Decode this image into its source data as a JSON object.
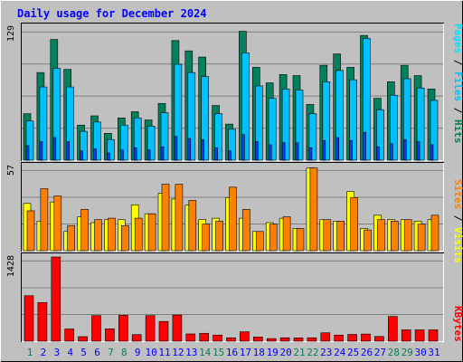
{
  "title": "Daily usage for December 2024",
  "colors": {
    "hits": "#00805c",
    "files": "#00c0ff",
    "pages": "#00e0ff",
    "visits": "#ffff00",
    "sites": "#ff8000",
    "kbytes": "#ff0000",
    "weekend_label": "#00805c",
    "weekday_label": "#0000ff",
    "title": "#0000ff"
  },
  "right_labels": {
    "top": [
      {
        "text": "Pages",
        "color": "#00e0ff"
      },
      {
        "text": " / ",
        "color": "#000000"
      },
      {
        "text": "Files",
        "color": "#00c0ff"
      },
      {
        "text": " / ",
        "color": "#000000"
      },
      {
        "text": "Hits",
        "color": "#00805c"
      }
    ],
    "middle": [
      {
        "text": "Sites",
        "color": "#ff8000"
      },
      {
        "text": " / ",
        "color": "#000000"
      },
      {
        "text": "Visits",
        "color": "#ffff00"
      }
    ],
    "bottom": [
      {
        "text": "KBytes",
        "color": "#ff0000"
      }
    ]
  },
  "chart_data": {
    "type": "bar",
    "title": "Daily usage for December 2024",
    "days": [
      "1",
      "2",
      "3",
      "4",
      "5",
      "6",
      "7",
      "8",
      "9",
      "10",
      "11",
      "12",
      "13",
      "14",
      "15",
      "16",
      "17",
      "18",
      "19",
      "20",
      "21",
      "22",
      "23",
      "24",
      "25",
      "26",
      "27",
      "28",
      "29",
      "30",
      "31"
    ],
    "weekend_days": [
      "1",
      "7",
      "8",
      "14",
      "15",
      "21",
      "22",
      "28",
      "29"
    ],
    "panels": [
      {
        "name": "hits-files-pages",
        "max_label": "129",
        "ymax": 129,
        "series": [
          {
            "name": "Hits",
            "values": [
              45,
              85,
              117,
              88,
              34,
              43,
              26,
              41,
              47,
              39,
              55,
              116,
              106,
              100,
              53,
              35,
              125,
              90,
              75,
              83,
              82,
              54,
              92,
              103,
              90,
              121,
              60,
              76,
              92,
              82,
              69
            ]
          },
          {
            "name": "Files",
            "values": [
              38,
              71,
              89,
              71,
              28,
              37,
              20,
              34,
              41,
              33,
              46,
              93,
              85,
              81,
              45,
              30,
              104,
              72,
              60,
              69,
              68,
              45,
              76,
              87,
              78,
              118,
              49,
              63,
              79,
              70,
              58
            ]
          },
          {
            "name": "Pages",
            "values": [
              14,
              18,
              22,
              18,
              9,
              11,
              7,
              10,
              12,
              10,
              13,
              23,
              21,
              20,
              12,
              9,
              25,
              18,
              15,
              17,
              17,
              12,
              19,
              22,
              19,
              27,
              13,
              16,
              20,
              18,
              15
            ]
          }
        ]
      },
      {
        "name": "visits-sites",
        "max_label": "57",
        "ymax": 57,
        "series": [
          {
            "name": "Visits",
            "values": [
              32,
              20,
              33,
              13,
              23,
              19,
              21,
              21,
              31,
              25,
              39,
              35,
              31,
              21,
              22,
              36,
              22,
              13,
              19,
              22,
              15,
              56,
              21,
              20,
              40,
              15,
              24,
              21,
              21,
              20,
              21
            ]
          },
          {
            "name": "Sites",
            "values": [
              27,
              42,
              37,
              17,
              28,
              21,
              22,
              17,
              22,
              25,
              45,
              45,
              34,
              18,
              20,
              43,
              28,
              13,
              18,
              23,
              15,
              56,
              21,
              20,
              36,
              14,
              21,
              20,
              21,
              18,
              24
            ]
          }
        ]
      },
      {
        "name": "kbytes",
        "max_label": "1428",
        "ymax": 1428,
        "series": [
          {
            "name": "KBytes",
            "values": [
              771,
              656,
              1428,
              207,
              77,
              434,
              210,
              440,
              112,
              434,
              335,
              444,
              123,
              134,
              104,
              58,
              159,
              72,
              44,
              58,
              55,
              58,
              142,
              104,
              115,
              121,
              80,
              420,
              192,
              192,
              192
            ]
          }
        ]
      }
    ]
  }
}
